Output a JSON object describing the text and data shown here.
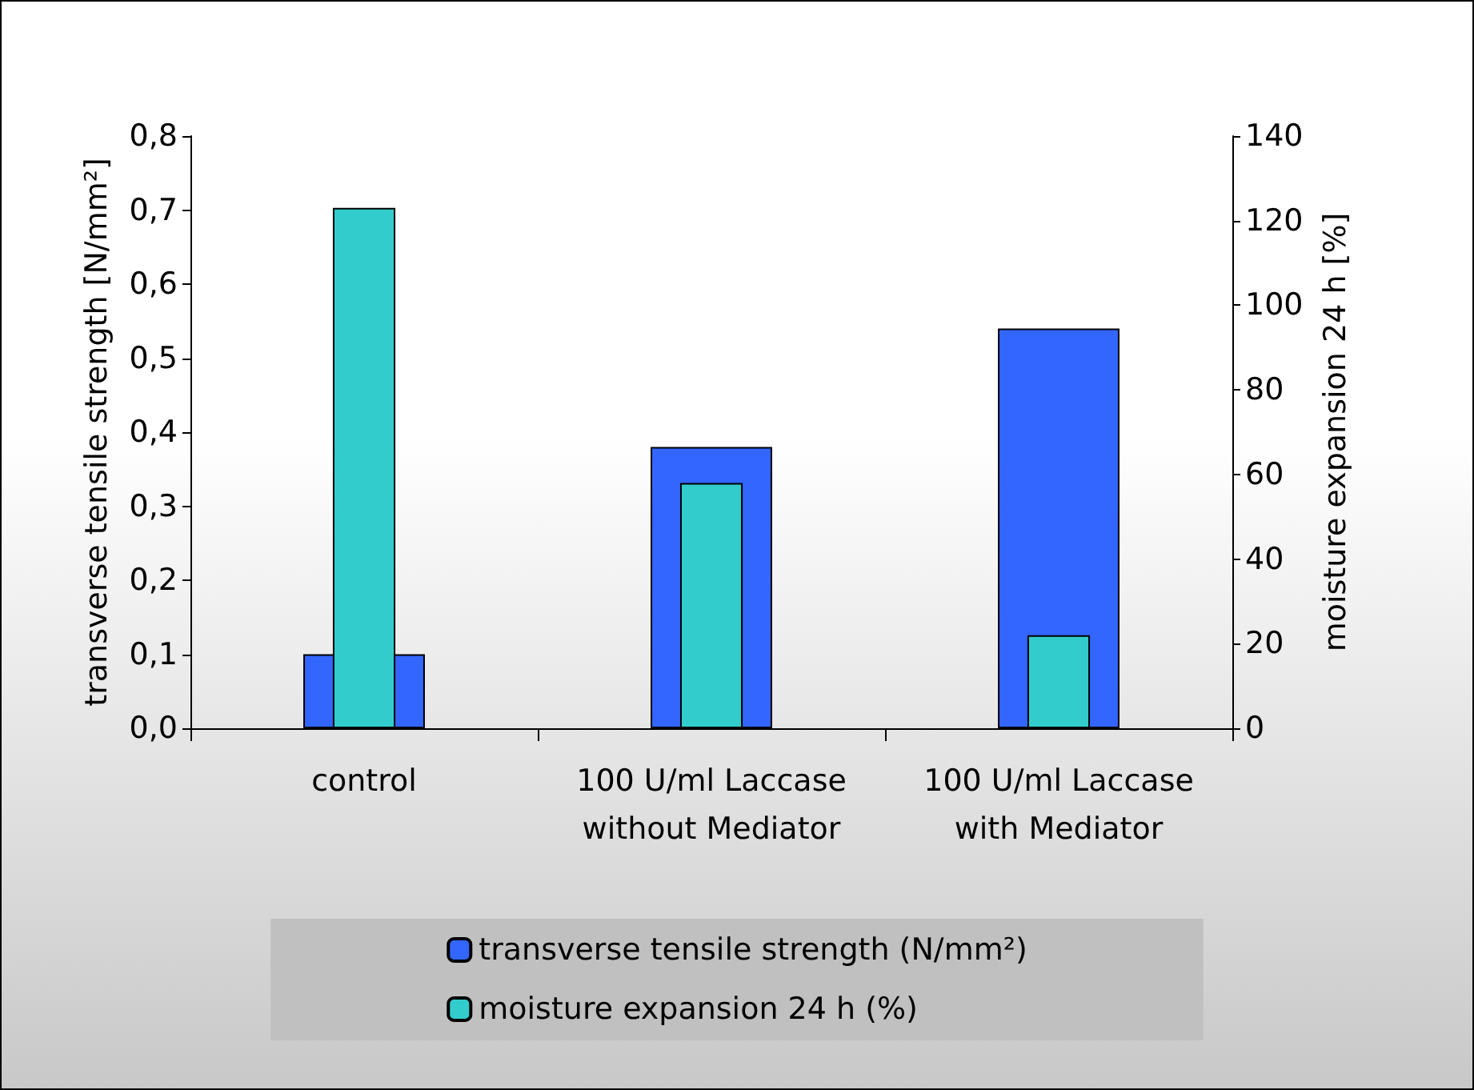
{
  "chart_data": {
    "type": "bar",
    "categories": [
      "control",
      "100 U/ml Laccase\nwithout Mediator",
      "100 U/ml Laccase\nwith Mediator"
    ],
    "ylabel": "transverse tensile strength [N/mm²]",
    "y2label": "moisture expansion 24 h [%]",
    "series": [
      {
        "name": "transverse tensile strength (N/mm²)",
        "color": "#3366ff",
        "values": [
          0.1,
          0.38,
          0.54
        ]
      },
      {
        "name": "moisture expansion 24 h (%)",
        "color": "#33cccc",
        "values": [
          123,
          58,
          22
        ],
        "axis": "y2"
      }
    ],
    "ylim": [
      0,
      0.8
    ],
    "yticks": [
      {
        "value": 0,
        "label": "0,0"
      },
      {
        "value": 0.1,
        "label": "0,1"
      },
      {
        "value": 0.2,
        "label": "0,2"
      },
      {
        "value": 0.3,
        "label": "0,3"
      },
      {
        "value": 0.4,
        "label": "0,4"
      },
      {
        "value": 0.5,
        "label": "0,5"
      },
      {
        "value": 0.6,
        "label": "0,6"
      },
      {
        "value": 0.7,
        "label": "0,7"
      },
      {
        "value": 0.8,
        "label": "0,8"
      }
    ],
    "y2lim": [
      0,
      140
    ],
    "y2ticks": [
      0,
      20,
      40,
      60,
      80,
      100,
      120,
      140
    ],
    "grid": false,
    "legend": "bottom"
  }
}
